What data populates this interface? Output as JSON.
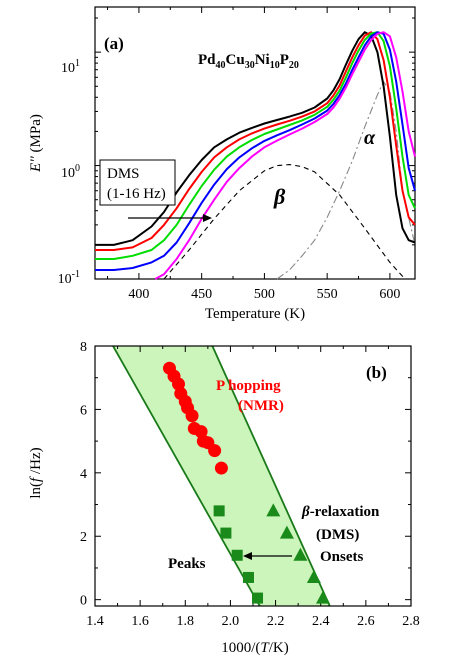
{
  "chart_data": [
    {
      "panel_label": "(a)",
      "type": "line",
      "title": "Pd40Cu30Ni10P20",
      "title_parts": {
        "symbols": [
          "Pd",
          "Cu",
          "Ni",
          "P"
        ],
        "subscripts": [
          "40",
          "30",
          "10",
          "20"
        ]
      },
      "xlabel": "Temperature (K)",
      "ylabel": "E'' (MPa)",
      "ylabel_parts": {
        "italic": "E''",
        "rest": " (MPa)"
      },
      "xlim": [
        365,
        620
      ],
      "ylim": [
        0.1,
        25
      ],
      "yscale": "log",
      "x_ticks": [
        400,
        450,
        500,
        550,
        600
      ],
      "y_ticks": [
        {
          "value": 0.1,
          "label_base": "10",
          "label_exp": "-1"
        },
        {
          "value": 1,
          "label_base": "10",
          "label_exp": "0"
        },
        {
          "value": 10,
          "label_base": "10",
          "label_exp": "1"
        }
      ],
      "grid": false,
      "legend_box": {
        "line1": "DMS",
        "line2": "(1-16 Hz)"
      },
      "annotations": {
        "beta": "β",
        "alpha": "α"
      },
      "series": [
        {
          "color": "#000000",
          "x": [
            365,
            380,
            395,
            410,
            420,
            430,
            440,
            450,
            460,
            470,
            480,
            490,
            500,
            510,
            520,
            530,
            540,
            550,
            555,
            560,
            565,
            570,
            575,
            580,
            585,
            590,
            595,
            600,
            605,
            610,
            615,
            620
          ],
          "y": [
            0.2,
            0.2,
            0.22,
            0.29,
            0.39,
            0.58,
            0.82,
            1.12,
            1.45,
            1.7,
            1.95,
            2.15,
            2.35,
            2.52,
            2.7,
            2.92,
            3.25,
            3.9,
            4.6,
            5.8,
            7.8,
            10.3,
            13.0,
            15.0,
            14.0,
            10.0,
            5.0,
            1.8,
            0.55,
            0.28,
            0.22,
            0.21
          ]
        },
        {
          "color": "#ff0000",
          "x": [
            365,
            380,
            395,
            410,
            420,
            430,
            440,
            450,
            460,
            470,
            480,
            490,
            500,
            510,
            520,
            530,
            540,
            550,
            555,
            560,
            565,
            570,
            575,
            580,
            585,
            590,
            595,
            600,
            605,
            610,
            615,
            620
          ],
          "y": [
            0.18,
            0.18,
            0.19,
            0.23,
            0.3,
            0.42,
            0.62,
            0.88,
            1.18,
            1.45,
            1.7,
            1.92,
            2.12,
            2.3,
            2.48,
            2.7,
            3.0,
            3.55,
            4.15,
            5.1,
            6.8,
            9.0,
            11.5,
            14.0,
            15.0,
            13.0,
            8.5,
            4.0,
            1.5,
            0.6,
            0.35,
            0.3
          ]
        },
        {
          "color": "#00dd00",
          "x": [
            365,
            380,
            395,
            410,
            420,
            430,
            440,
            450,
            460,
            470,
            480,
            490,
            500,
            510,
            520,
            530,
            540,
            550,
            555,
            560,
            565,
            570,
            575,
            580,
            585,
            590,
            595,
            600,
            605,
            610,
            615,
            620
          ],
          "y": [
            0.15,
            0.15,
            0.16,
            0.18,
            0.22,
            0.3,
            0.45,
            0.66,
            0.92,
            1.2,
            1.45,
            1.68,
            1.9,
            2.08,
            2.28,
            2.5,
            2.8,
            3.3,
            3.8,
            4.6,
            6.0,
            8.0,
            10.3,
            12.8,
            14.6,
            15.0,
            12.5,
            7.5,
            3.2,
            1.2,
            0.55,
            0.42
          ]
        },
        {
          "color": "#0000ff",
          "x": [
            365,
            380,
            395,
            410,
            420,
            430,
            440,
            450,
            460,
            470,
            480,
            490,
            500,
            510,
            520,
            530,
            540,
            550,
            555,
            560,
            565,
            570,
            575,
            580,
            585,
            590,
            595,
            600,
            605,
            610,
            615,
            620
          ],
          "y": [
            0.12,
            0.12,
            0.125,
            0.14,
            0.16,
            0.21,
            0.31,
            0.47,
            0.68,
            0.93,
            1.18,
            1.42,
            1.65,
            1.85,
            2.05,
            2.3,
            2.6,
            3.05,
            3.5,
            4.2,
            5.3,
            7.0,
            9.0,
            11.5,
            13.8,
            15.0,
            14.5,
            10.5,
            5.5,
            2.3,
            0.95,
            0.6
          ]
        },
        {
          "color": "#ff00ff",
          "x": [
            413,
            420,
            430,
            440,
            450,
            460,
            470,
            480,
            490,
            500,
            510,
            520,
            530,
            540,
            550,
            555,
            560,
            565,
            570,
            575,
            580,
            585,
            590,
            595,
            600,
            605,
            610,
            615,
            620
          ],
          "y": [
            0.1,
            0.11,
            0.15,
            0.22,
            0.34,
            0.5,
            0.72,
            0.95,
            1.2,
            1.45,
            1.66,
            1.88,
            2.12,
            2.42,
            2.85,
            3.25,
            3.9,
            4.9,
            6.4,
            8.2,
            10.5,
            12.8,
            14.5,
            15.0,
            13.8,
            9.0,
            4.5,
            2.0,
            1.2
          ]
        }
      ],
      "fit_curves": [
        {
          "name": "β",
          "style": "dashed",
          "color": "#000000",
          "x": [
            420,
            440,
            460,
            480,
            500,
            510,
            520,
            530,
            540,
            560,
            580,
            600,
            612
          ],
          "y": [
            0.1,
            0.18,
            0.34,
            0.6,
            0.9,
            1.0,
            1.02,
            0.98,
            0.88,
            0.55,
            0.28,
            0.14,
            0.1
          ]
        },
        {
          "name": "α",
          "style": "dash-dot",
          "color": "#888888",
          "x": [
            510,
            520,
            530,
            540,
            550,
            560,
            570,
            580,
            590,
            595,
            600,
            605,
            610,
            620
          ],
          "y": [
            0.1,
            0.12,
            0.16,
            0.22,
            0.35,
            0.6,
            1.1,
            2.2,
            4.2,
            5.5,
            4.5,
            2.0,
            0.6,
            0.2
          ]
        }
      ]
    },
    {
      "panel_label": "(b)",
      "type": "scatter",
      "xlabel": "1000/(T/K)",
      "xlabel_parts": {
        "pre": "1000/(",
        "italic": "T",
        "post": "/K)"
      },
      "ylabel": "ln(f /Hz)",
      "ylabel_parts": {
        "pre": "ln(",
        "italic": "f",
        "post": " /Hz)"
      },
      "xlim": [
        1.4,
        2.8
      ],
      "ylim": [
        -0.2,
        8
      ],
      "x_ticks": [
        "1.4",
        "1.6",
        "1.8",
        "2.0",
        "2.2",
        "2.4",
        "2.6",
        "2.8"
      ],
      "y_ticks": [
        "0",
        "2",
        "4",
        "6",
        "8"
      ],
      "grid": false,
      "band": {
        "left_line": [
          [
            1.48,
            8
          ],
          [
            2.13,
            -0.2
          ]
        ],
        "right_line": [
          [
            1.92,
            8
          ],
          [
            2.44,
            -0.2
          ]
        ],
        "fill": "#ccf5bb",
        "line_color": "#1a7a1a"
      },
      "series": [
        {
          "name": "P hopping (NMR)",
          "marker": "circle",
          "color": "#ff0000",
          "x": [
            1.73,
            1.75,
            1.77,
            1.78,
            1.8,
            1.81,
            1.83,
            1.84,
            1.87,
            1.88,
            1.9,
            1.93,
            1.96
          ],
          "y": [
            7.3,
            7.05,
            6.8,
            6.5,
            6.25,
            6.05,
            5.8,
            5.4,
            5.3,
            5.0,
            4.95,
            4.7,
            4.15
          ]
        },
        {
          "name": "Peaks",
          "marker": "square",
          "color": "#1a8a1a",
          "x": [
            1.95,
            1.98,
            2.03,
            2.08,
            2.12
          ],
          "y": [
            2.8,
            2.1,
            1.4,
            0.7,
            0.05
          ]
        },
        {
          "name": "Onsets",
          "marker": "triangle",
          "color": "#1a8a1a",
          "x": [
            2.19,
            2.25,
            2.31,
            2.37,
            2.41
          ],
          "y": [
            2.8,
            2.1,
            1.4,
            0.7,
            0.05
          ]
        }
      ],
      "annotations": {
        "nmr_line1": "P hopping",
        "nmr_line2": "(NMR)",
        "dms_line1": "-relaxation",
        "dms_beta": "β",
        "dms_line2": "(DMS)",
        "onsets": "Onsets",
        "peaks": "Peaks"
      }
    }
  ]
}
